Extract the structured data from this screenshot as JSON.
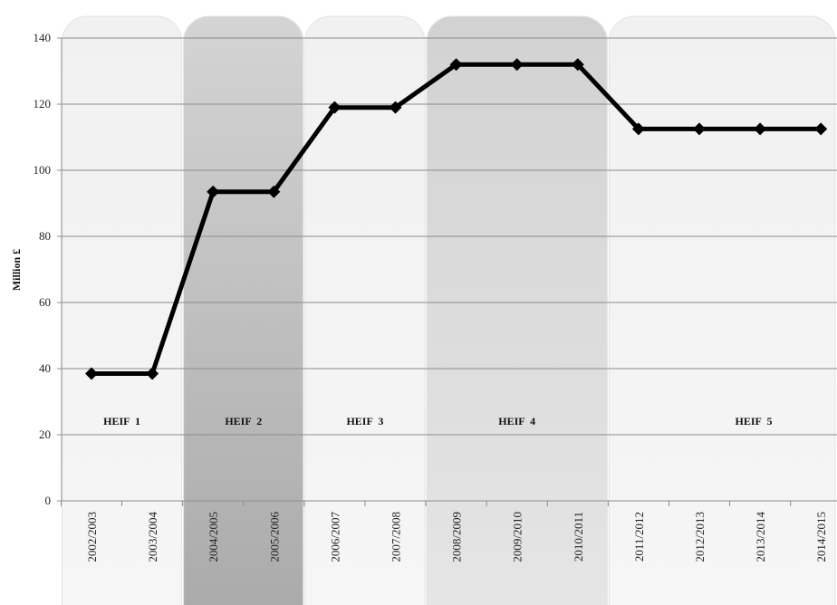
{
  "chart_data": {
    "type": "line",
    "ylabel": "Million £",
    "xlabel": "",
    "title": "",
    "ylim": [
      0,
      140
    ],
    "yticks": [
      0,
      20,
      40,
      60,
      80,
      100,
      120,
      140
    ],
    "grid": true,
    "categories": [
      "2002/2003",
      "2003/2004",
      "2004/2005",
      "2005/2006",
      "2006/2007",
      "2007/2008",
      "2008/2009",
      "2009/2010",
      "2010/2011",
      "2011/2012",
      "2012/2013",
      "2013/2014",
      "2014/2015"
    ],
    "series": [
      {
        "values": [
          38.5,
          38.5,
          93.5,
          93.5,
          119,
          119,
          132,
          132,
          132,
          112.5,
          112.5,
          112.5,
          112.5
        ]
      }
    ],
    "line_color": "#000000",
    "phases": [
      {
        "label": "HEIF  1",
        "start": 0,
        "end": 1,
        "fill": "#efefef"
      },
      {
        "label": "HEIF  2",
        "start": 2,
        "end": 3,
        "fill": "#bfbfbf"
      },
      {
        "label": "HEIF  3",
        "start": 4,
        "end": 5,
        "fill": "#efefef"
      },
      {
        "label": "HEIF  4",
        "start": 6,
        "end": 8,
        "fill": "#d6d6d6"
      },
      {
        "label": "HEIF  5",
        "start": 9,
        "end": 12,
        "fill": "#f2f2f2"
      }
    ]
  }
}
